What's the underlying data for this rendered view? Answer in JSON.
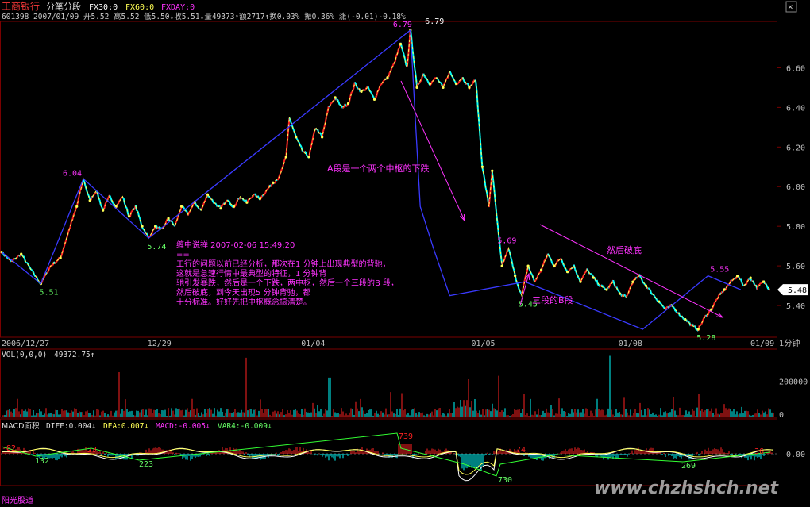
{
  "header": {
    "name": "工商银行",
    "period": "分笔分段",
    "fx30": "FX30:0",
    "fx60": "FX60:0",
    "fxday": "FXDAY:0",
    "close_btn": "×",
    "info": "601398 2007/01/09 开5.52 高5.52 低5.50↓收5.51↓量49373↑额2717↑换0.03% 振0.36% 涨(-0.01)-0.18%"
  },
  "colors": {
    "bg": "#000000",
    "grid": "#7a0000",
    "up": "#ff2222",
    "down": "#00ffff",
    "stroke": "#3a3aff",
    "dash": "#ffff55",
    "annot": "#ff33ff",
    "label": "#66ff66",
    "axis": "#c0c0c0"
  },
  "annotations": {
    "note_title": "缠中说禅 2007-02-06 15:49:20",
    "note_sep": "==",
    "note_lines": [
      "工行的问题以前已经分析，那次在1 分钟上出现典型的背驰，",
      "这就是急速行情中最典型的特征，1 分钟背",
      "驰引发暴跌，然后是一个下跌，两中枢，然后一个三段的B 段，",
      "然后破底，到今天出现5 分钟背驰，都",
      "十分标准。好好先把中枢概念搞清楚。"
    ],
    "segA": "A段是一个两个中枢的下跌",
    "segB": "三段的B段",
    "break": "然后破底",
    "watermark": "www.chzhshch.net",
    "footer": "阳光股道"
  },
  "chart_data": [
    {
      "type": "line",
      "title": "工商银行 分笔分段",
      "interval_label": "1分钟",
      "y_ticks": [
        5.4,
        5.6,
        5.8,
        6.0,
        6.2,
        6.4,
        6.6
      ],
      "ylim": [
        5.24,
        6.83
      ],
      "x_ticks": [
        "2006/12/27",
        "12/29",
        "01/04",
        "01/05",
        "01/08",
        "01/09"
      ],
      "last_price_label": "5.48",
      "pivots": [
        {
          "label": "5.51",
          "value": 5.51,
          "kind": "low"
        },
        {
          "label": "6.04",
          "value": 6.04,
          "kind": "high"
        },
        {
          "label": "5.74",
          "value": 5.74,
          "kind": "low"
        },
        {
          "label": "6.79",
          "value": 6.79,
          "kind": "high"
        },
        {
          "label": "6.79",
          "value": 6.79,
          "kind": "high"
        },
        {
          "label": "5.69",
          "value": 5.69,
          "kind": "high"
        },
        {
          "label": "5.45",
          "value": 5.45,
          "kind": "low"
        },
        {
          "label": "5.28",
          "value": 5.28,
          "kind": "low"
        },
        {
          "label": "5.55",
          "value": 5.55,
          "kind": "high"
        }
      ],
      "strokes": [
        [
          0,
          5.67
        ],
        [
          12,
          5.51
        ],
        [
          25,
          6.04
        ],
        [
          45,
          5.74
        ],
        [
          125,
          6.79
        ],
        [
          128,
          5.9
        ],
        [
          132,
          5.69
        ],
        [
          137,
          5.45
        ],
        [
          160,
          5.52
        ],
        [
          196,
          5.28
        ],
        [
          216,
          5.55
        ],
        [
          226,
          5.48
        ]
      ],
      "price": [
        [
          0,
          5.67
        ],
        [
          3,
          5.62
        ],
        [
          6,
          5.66
        ],
        [
          9,
          5.58
        ],
        [
          12,
          5.51
        ],
        [
          15,
          5.6
        ],
        [
          18,
          5.64
        ],
        [
          21,
          5.8
        ],
        [
          23,
          5.9
        ],
        [
          25,
          6.04
        ],
        [
          27,
          5.93
        ],
        [
          29,
          5.98
        ],
        [
          31,
          5.88
        ],
        [
          33,
          5.95
        ],
        [
          35,
          5.9
        ],
        [
          37,
          5.95
        ],
        [
          39,
          5.85
        ],
        [
          41,
          5.9
        ],
        [
          43,
          5.8
        ],
        [
          45,
          5.74
        ],
        [
          47,
          5.8
        ],
        [
          49,
          5.78
        ],
        [
          51,
          5.84
        ],
        [
          53,
          5.8
        ],
        [
          55,
          5.9
        ],
        [
          57,
          5.86
        ],
        [
          59,
          5.92
        ],
        [
          61,
          5.88
        ],
        [
          63,
          5.96
        ],
        [
          65,
          5.92
        ],
        [
          67,
          5.89
        ],
        [
          69,
          5.93
        ],
        [
          71,
          5.9
        ],
        [
          73,
          5.95
        ],
        [
          75,
          5.92
        ],
        [
          77,
          5.96
        ],
        [
          79,
          5.94
        ],
        [
          81,
          5.98
        ],
        [
          83,
          6.02
        ],
        [
          85,
          6.05
        ],
        [
          87,
          6.15
        ],
        [
          88,
          6.35
        ],
        [
          90,
          6.25
        ],
        [
          92,
          6.18
        ],
        [
          94,
          6.15
        ],
        [
          96,
          6.3
        ],
        [
          98,
          6.25
        ],
        [
          100,
          6.4
        ],
        [
          102,
          6.45
        ],
        [
          104,
          6.4
        ],
        [
          106,
          6.42
        ],
        [
          108,
          6.52
        ],
        [
          110,
          6.48
        ],
        [
          112,
          6.5
        ],
        [
          114,
          6.44
        ],
        [
          116,
          6.52
        ],
        [
          118,
          6.55
        ],
        [
          120,
          6.62
        ],
        [
          122,
          6.72
        ],
        [
          124,
          6.6
        ],
        [
          125,
          6.79
        ],
        [
          126,
          6.65
        ],
        [
          127,
          6.5
        ],
        [
          129,
          6.57
        ],
        [
          131,
          6.52
        ],
        [
          133,
          6.55
        ],
        [
          135,
          6.5
        ],
        [
          137,
          6.58
        ],
        [
          139,
          6.52
        ],
        [
          141,
          6.55
        ],
        [
          143,
          6.5
        ],
        [
          145,
          6.54
        ],
        [
          147,
          6.1
        ],
        [
          149,
          5.9
        ],
        [
          150,
          6.08
        ],
        [
          152,
          5.75
        ],
        [
          153,
          5.6
        ],
        [
          155,
          5.69
        ],
        [
          157,
          5.55
        ],
        [
          159,
          5.45
        ],
        [
          161,
          5.6
        ],
        [
          163,
          5.52
        ],
        [
          165,
          5.58
        ],
        [
          167,
          5.66
        ],
        [
          169,
          5.6
        ],
        [
          171,
          5.64
        ],
        [
          173,
          5.57
        ],
        [
          175,
          5.6
        ],
        [
          177,
          5.52
        ],
        [
          179,
          5.58
        ],
        [
          181,
          5.54
        ],
        [
          183,
          5.5
        ],
        [
          185,
          5.48
        ],
        [
          187,
          5.52
        ],
        [
          189,
          5.46
        ],
        [
          191,
          5.44
        ],
        [
          193,
          5.52
        ],
        [
          195,
          5.55
        ],
        [
          197,
          5.5
        ],
        [
          199,
          5.46
        ],
        [
          201,
          5.42
        ],
        [
          203,
          5.38
        ],
        [
          205,
          5.4
        ],
        [
          207,
          5.36
        ],
        [
          209,
          5.33
        ],
        [
          211,
          5.3
        ],
        [
          213,
          5.28
        ],
        [
          215,
          5.34
        ],
        [
          217,
          5.38
        ],
        [
          219,
          5.44
        ],
        [
          221,
          5.48
        ],
        [
          223,
          5.52
        ],
        [
          225,
          5.55
        ],
        [
          227,
          5.5
        ],
        [
          229,
          5.54
        ],
        [
          231,
          5.49
        ],
        [
          233,
          5.52
        ],
        [
          235,
          5.48
        ]
      ]
    },
    {
      "type": "bar",
      "title": "VOL(0,0,0)",
      "value_label": "49372.75↑",
      "y_ticks": [
        0,
        200000
      ],
      "ylim": [
        0,
        360000
      ],
      "note": "per-minute volume bars (red/cyan)"
    },
    {
      "type": "line",
      "title": "MACD面积",
      "legend": [
        "DIFF:0.004↓",
        "DEA:0.007↓",
        "MACD:-0.005↓",
        "VAR4:-0.009↓"
      ],
      "y_ticks": [
        "0.00"
      ],
      "area_labels": [
        "-82",
        "132",
        "23",
        "223",
        "739",
        "730",
        "74",
        "269",
        "36"
      ]
    }
  ]
}
